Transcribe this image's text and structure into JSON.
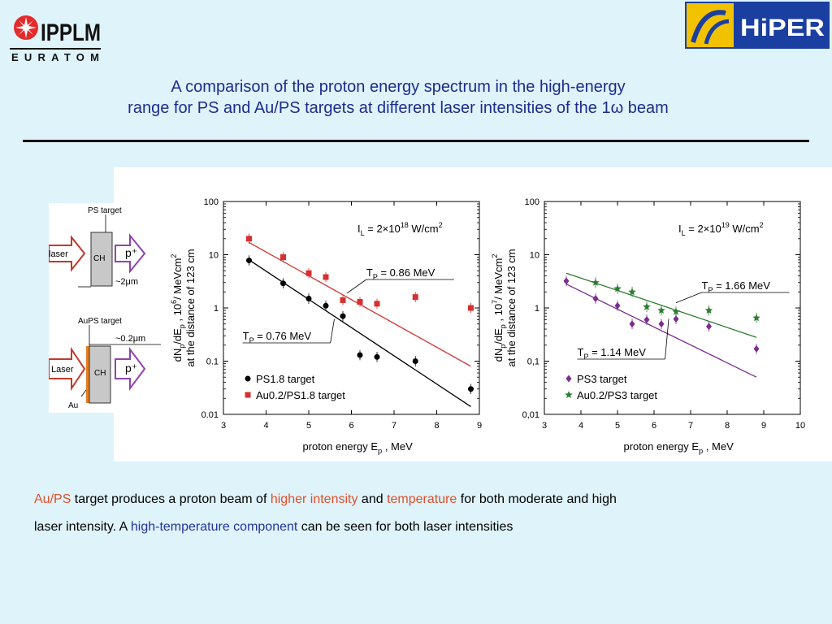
{
  "logos": {
    "ipplm_name": "IPPLM",
    "ipplm_sub": "EURATOM",
    "hiper_name": "HiPER"
  },
  "title": {
    "line1": "A comparison of the proton energy spectrum in the high-energy",
    "line2": "range for PS and Au/PS targets at different laser intensities of the 1ω beam"
  },
  "schematic": {
    "top_label": "PS target",
    "laser_label": "laser",
    "ch_label": "CH",
    "proton_label": "p⁺",
    "thickness_top": "~2μm",
    "bottom_label": "AuPS target",
    "thickness_bottom": "~0.2μm",
    "laser_label2": "Laser",
    "ch_label2": "CH",
    "proton_label2": "p⁺",
    "au_label": "Au",
    "colors": {
      "arrow": "#c0392b",
      "au_layer": "#e67e22",
      "ch_fill": "#c8c8c8",
      "proton_arrow": "#8e44ad"
    }
  },
  "chart_data": [
    {
      "type": "scatter",
      "intensity_label": "I",
      "intensity_sub": "L",
      "intensity_value": " = 2×10",
      "intensity_exp": "18",
      "intensity_unit": " W/cm",
      "intensity_unit_exp": "2",
      "xlabel": "proton energy E",
      "xlabel_sub": "p",
      "xlabel_unit": " , MeV",
      "ylabel_line1": "dN_p/dE_p , 10^6/ MeVcm^2",
      "ylabel_line2": "at the distance of 123 cm",
      "xlim": [
        3,
        9
      ],
      "ylim": [
        0.01,
        100
      ],
      "yscale": "log",
      "xticks": [
        "3",
        "4",
        "5",
        "6",
        "7",
        "8",
        "9"
      ],
      "yticks": [
        "0.01",
        "0.1",
        "1",
        "10",
        "100"
      ],
      "series": [
        {
          "name": "PS1.8 target",
          "color": "#000000",
          "marker": "circle",
          "x": [
            3.6,
            4.4,
            5.0,
            5.4,
            5.8,
            6.2,
            6.6,
            7.5,
            8.8
          ],
          "y": [
            7.8,
            2.9,
            1.5,
            1.1,
            0.7,
            0.13,
            0.12,
            0.1,
            0.03
          ],
          "fit": {
            "x": [
              3.6,
              8.8
            ],
            "y": [
              8.0,
              0.014
            ],
            "label": "T",
            "label_sub": "P",
            "label_value": " = 0.76 MeV"
          }
        },
        {
          "name": "Au0.2/PS1.8 target",
          "color": "#d63030",
          "marker": "square",
          "x": [
            3.6,
            4.4,
            5.0,
            5.4,
            5.8,
            6.2,
            6.6,
            7.5,
            8.8
          ],
          "y": [
            20,
            9.0,
            4.5,
            3.8,
            1.4,
            1.3,
            1.2,
            1.6,
            1.0
          ],
          "fit": {
            "x": [
              3.6,
              8.8
            ],
            "y": [
              17,
              0.08
            ],
            "label": "T",
            "label_sub": "P",
            "label_value": " = 0.86 MeV"
          }
        }
      ]
    },
    {
      "type": "scatter",
      "intensity_label": "I",
      "intensity_sub": "L",
      "intensity_value": " = 2×10",
      "intensity_exp": "19",
      "intensity_unit": " W/cm",
      "intensity_unit_exp": "2",
      "xlabel": "proton energy E",
      "xlabel_sub": "p",
      "xlabel_unit": " , MeV",
      "ylabel_line1": "dN_p/dE_p , 10^7/ MeVcm^2",
      "ylabel_line2": "at the distance of 123 cm",
      "xlim": [
        3,
        10
      ],
      "ylim": [
        0.01,
        100
      ],
      "yscale": "log",
      "xticks": [
        "3",
        "4",
        "5",
        "6",
        "7",
        "8",
        "9",
        "10"
      ],
      "yticks": [
        "0,01",
        "0,1",
        "1",
        "10",
        "100"
      ],
      "series": [
        {
          "name": "PS3 target",
          "color": "#7b2d8e",
          "marker": "diamond",
          "x": [
            3.6,
            4.4,
            5.0,
            5.4,
            5.8,
            6.2,
            6.6,
            7.5,
            8.8
          ],
          "y": [
            3.2,
            1.5,
            1.1,
            0.5,
            0.6,
            0.5,
            0.62,
            0.45,
            0.17
          ],
          "fit": {
            "x": [
              3.6,
              8.8
            ],
            "y": [
              2.8,
              0.05
            ],
            "label": "T",
            "label_sub": "P",
            "label_value": " = 1.14 MeV"
          }
        },
        {
          "name": "Au0.2/PS3 target",
          "color": "#2e7d32",
          "marker": "star",
          "x": [
            3.6,
            4.4,
            5.0,
            5.4,
            5.8,
            6.2,
            6.6,
            7.5,
            8.8
          ],
          "y": [
            null,
            3.0,
            2.3,
            2.0,
            1.05,
            0.9,
            0.85,
            0.9,
            0.65
          ],
          "fit": {
            "x": [
              3.6,
              8.8
            ],
            "y": [
              4.5,
              0.28
            ],
            "label": "T",
            "label_sub": "P",
            "label_value": " = 1.66 MeV"
          }
        }
      ]
    }
  ],
  "caption": {
    "p1": "Au/PS",
    "p2": " target produces a proton beam of ",
    "p3": "higher intensity",
    "p4": " and ",
    "p5": "temperature",
    "p6": " for both moderate and high",
    "p7": "laser intensity. A ",
    "p8": "high-temperature component",
    "p9": " can be seen for both laser intensities"
  }
}
